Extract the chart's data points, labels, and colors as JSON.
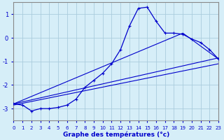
{
  "xlabel": "Graphe des températures (°c)",
  "bg_color": "#d6eef8",
  "line_color": "#0000cc",
  "grid_color": "#aaccdd",
  "xlim": [
    0,
    23
  ],
  "ylim": [
    -3.5,
    1.5
  ],
  "yticks": [
    -3,
    -2,
    -1,
    0,
    1
  ],
  "xticks": [
    0,
    1,
    2,
    3,
    4,
    5,
    6,
    7,
    8,
    9,
    10,
    11,
    12,
    13,
    14,
    15,
    16,
    17,
    18,
    19,
    20,
    21,
    22,
    23
  ],
  "curve_x": [
    0,
    1,
    2,
    3,
    4,
    5,
    6,
    7,
    8,
    9,
    10,
    11,
    12,
    13,
    14,
    15,
    16,
    17,
    18,
    19,
    20,
    21,
    22,
    23
  ],
  "curve_y": [
    -2.8,
    -2.85,
    -3.1,
    -3.0,
    -3.0,
    -2.95,
    -2.85,
    -2.6,
    -2.1,
    -1.8,
    -1.5,
    -1.1,
    -0.5,
    0.5,
    1.25,
    1.3,
    0.7,
    0.2,
    0.2,
    0.15,
    -0.05,
    -0.2,
    -0.5,
    -0.9
  ],
  "line1_x": [
    0,
    23
  ],
  "line1_y": [
    -2.8,
    -0.85
  ],
  "line2_x": [
    0,
    19,
    23
  ],
  "line2_y": [
    -2.8,
    0.2,
    -0.9
  ],
  "line3_x": [
    0,
    23
  ],
  "line3_y": [
    -2.85,
    -1.1
  ]
}
